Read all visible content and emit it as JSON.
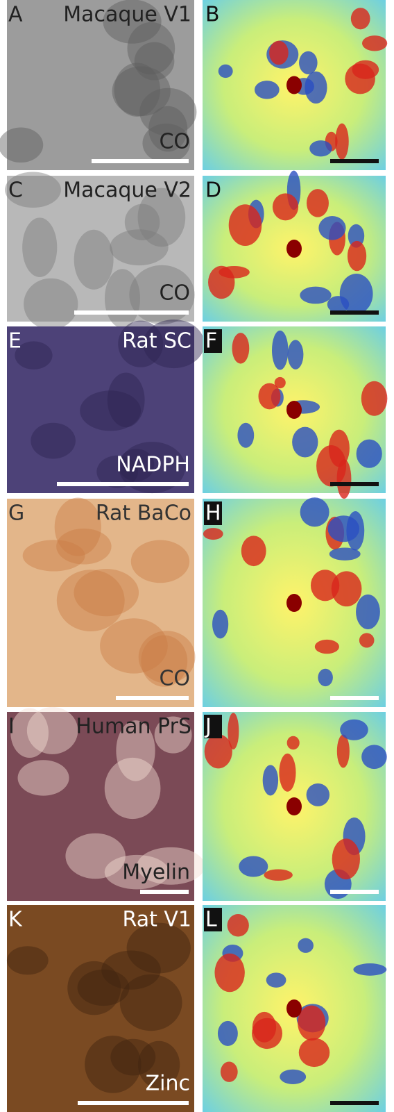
{
  "rows": [
    {
      "left": {
        "letter": "A",
        "title": "Macaque V1",
        "stain": "CO"
      },
      "right": {
        "letter": "B"
      }
    },
    {
      "left": {
        "letter": "C",
        "title": "Macaque V2",
        "stain": "CO"
      },
      "right": {
        "letter": "D"
      }
    },
    {
      "left": {
        "letter": "E",
        "title": "Rat SC",
        "stain": "NADPH"
      },
      "right": {
        "letter": "F"
      }
    },
    {
      "left": {
        "letter": "G",
        "title": "Rat BaCo",
        "stain": "CO"
      },
      "right": {
        "letter": "H"
      }
    },
    {
      "left": {
        "letter": "I",
        "title": "Human PrS",
        "stain": "Myelin"
      },
      "right": {
        "letter": "J"
      }
    },
    {
      "left": {
        "letter": "K",
        "title": "Rat V1",
        "stain": "Zinc"
      },
      "right": {
        "letter": "L"
      }
    }
  ]
}
